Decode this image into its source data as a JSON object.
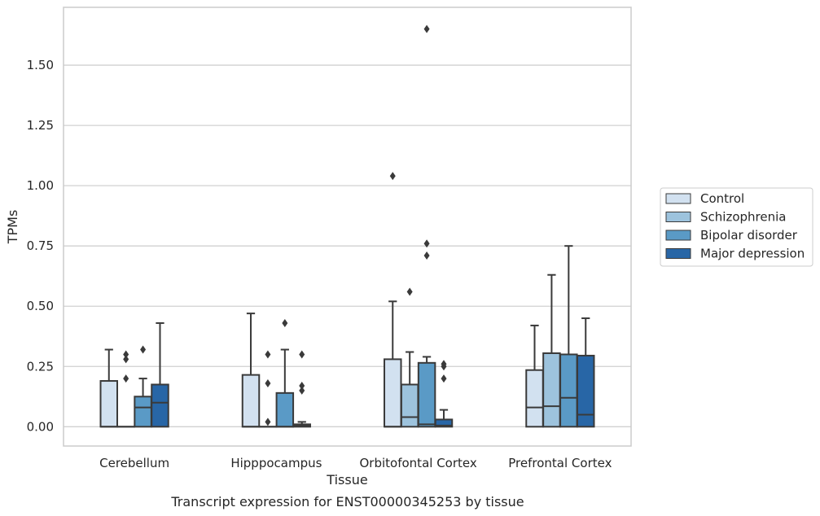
{
  "chart_data": {
    "type": "boxplot",
    "title": "",
    "caption": "Transcript expression for ENST00000345253 by tissue",
    "xlabel": "Tissue",
    "ylabel": "TPMs",
    "ylim": [
      -0.08,
      1.74
    ],
    "yticks": [
      "0.00",
      "0.25",
      "0.50",
      "0.75",
      "1.00",
      "1.25",
      "1.50"
    ],
    "yticks_values": [
      0,
      0.25,
      0.5,
      0.75,
      1.0,
      1.25,
      1.5
    ],
    "grid": "horizontal",
    "legend_position": "right",
    "categories": [
      "Cerebellum",
      "Hipppocampus",
      "Orbitofontal Cortex",
      "Prefrontal Cortex"
    ],
    "series": [
      {
        "name": "Control",
        "color": "#d2e1f0",
        "boxes": [
          {
            "q1": 0,
            "median": 0,
            "q3": 0.19,
            "whisker_low": 0,
            "whisker_high": 0.32,
            "outliers": []
          },
          {
            "q1": 0,
            "median": 0,
            "q3": 0.215,
            "whisker_low": 0,
            "whisker_high": 0.47,
            "outliers": []
          },
          {
            "q1": 0,
            "median": 0,
            "q3": 0.28,
            "whisker_low": 0,
            "whisker_high": 0.52,
            "outliers": [
              1.04
            ]
          },
          {
            "q1": 0,
            "median": 0.08,
            "q3": 0.235,
            "whisker_low": 0,
            "whisker_high": 0.42,
            "outliers": []
          }
        ]
      },
      {
        "name": "Schizophrenia",
        "color": "#9dc3dd",
        "boxes": [
          {
            "q1": 0,
            "median": 0,
            "q3": 0,
            "whisker_low": 0,
            "whisker_high": 0,
            "outliers": [
              0.2,
              0.28,
              0.3
            ]
          },
          {
            "q1": 0,
            "median": 0,
            "q3": 0,
            "whisker_low": 0,
            "whisker_high": 0,
            "outliers": [
              0.02,
              0.18,
              0.3
            ]
          },
          {
            "q1": 0,
            "median": 0.04,
            "q3": 0.175,
            "whisker_low": 0,
            "whisker_high": 0.31,
            "outliers": [
              0.56
            ]
          },
          {
            "q1": 0,
            "median": 0.085,
            "q3": 0.305,
            "whisker_low": 0,
            "whisker_high": 0.63,
            "outliers": []
          }
        ]
      },
      {
        "name": "Bipolar disorder",
        "color": "#5a9ac6",
        "boxes": [
          {
            "q1": 0,
            "median": 0.08,
            "q3": 0.125,
            "whisker_low": 0,
            "whisker_high": 0.2,
            "outliers": [
              0.32
            ]
          },
          {
            "q1": 0,
            "median": 0,
            "q3": 0.14,
            "whisker_low": 0,
            "whisker_high": 0.32,
            "outliers": [
              0.43
            ]
          },
          {
            "q1": 0,
            "median": 0.01,
            "q3": 0.265,
            "whisker_low": 0,
            "whisker_high": 0.29,
            "outliers": [
              0.71,
              0.76,
              1.65
            ]
          },
          {
            "q1": 0,
            "median": 0.12,
            "q3": 0.3,
            "whisker_low": 0,
            "whisker_high": 0.75,
            "outliers": []
          }
        ]
      },
      {
        "name": "Major depression",
        "color": "#2866a6",
        "boxes": [
          {
            "q1": 0,
            "median": 0.1,
            "q3": 0.175,
            "whisker_low": 0,
            "whisker_high": 0.43,
            "outliers": []
          },
          {
            "q1": 0,
            "median": 0.005,
            "q3": 0.01,
            "whisker_low": 0,
            "whisker_high": 0.02,
            "outliers": [
              0.15,
              0.17,
              0.3
            ]
          },
          {
            "q1": 0,
            "median": 0.005,
            "q3": 0.03,
            "whisker_low": 0,
            "whisker_high": 0.07,
            "outliers": [
              0.2,
              0.25,
              0.26
            ]
          },
          {
            "q1": 0,
            "median": 0.05,
            "q3": 0.295,
            "whisker_low": 0,
            "whisker_high": 0.45,
            "outliers": []
          }
        ]
      }
    ]
  }
}
